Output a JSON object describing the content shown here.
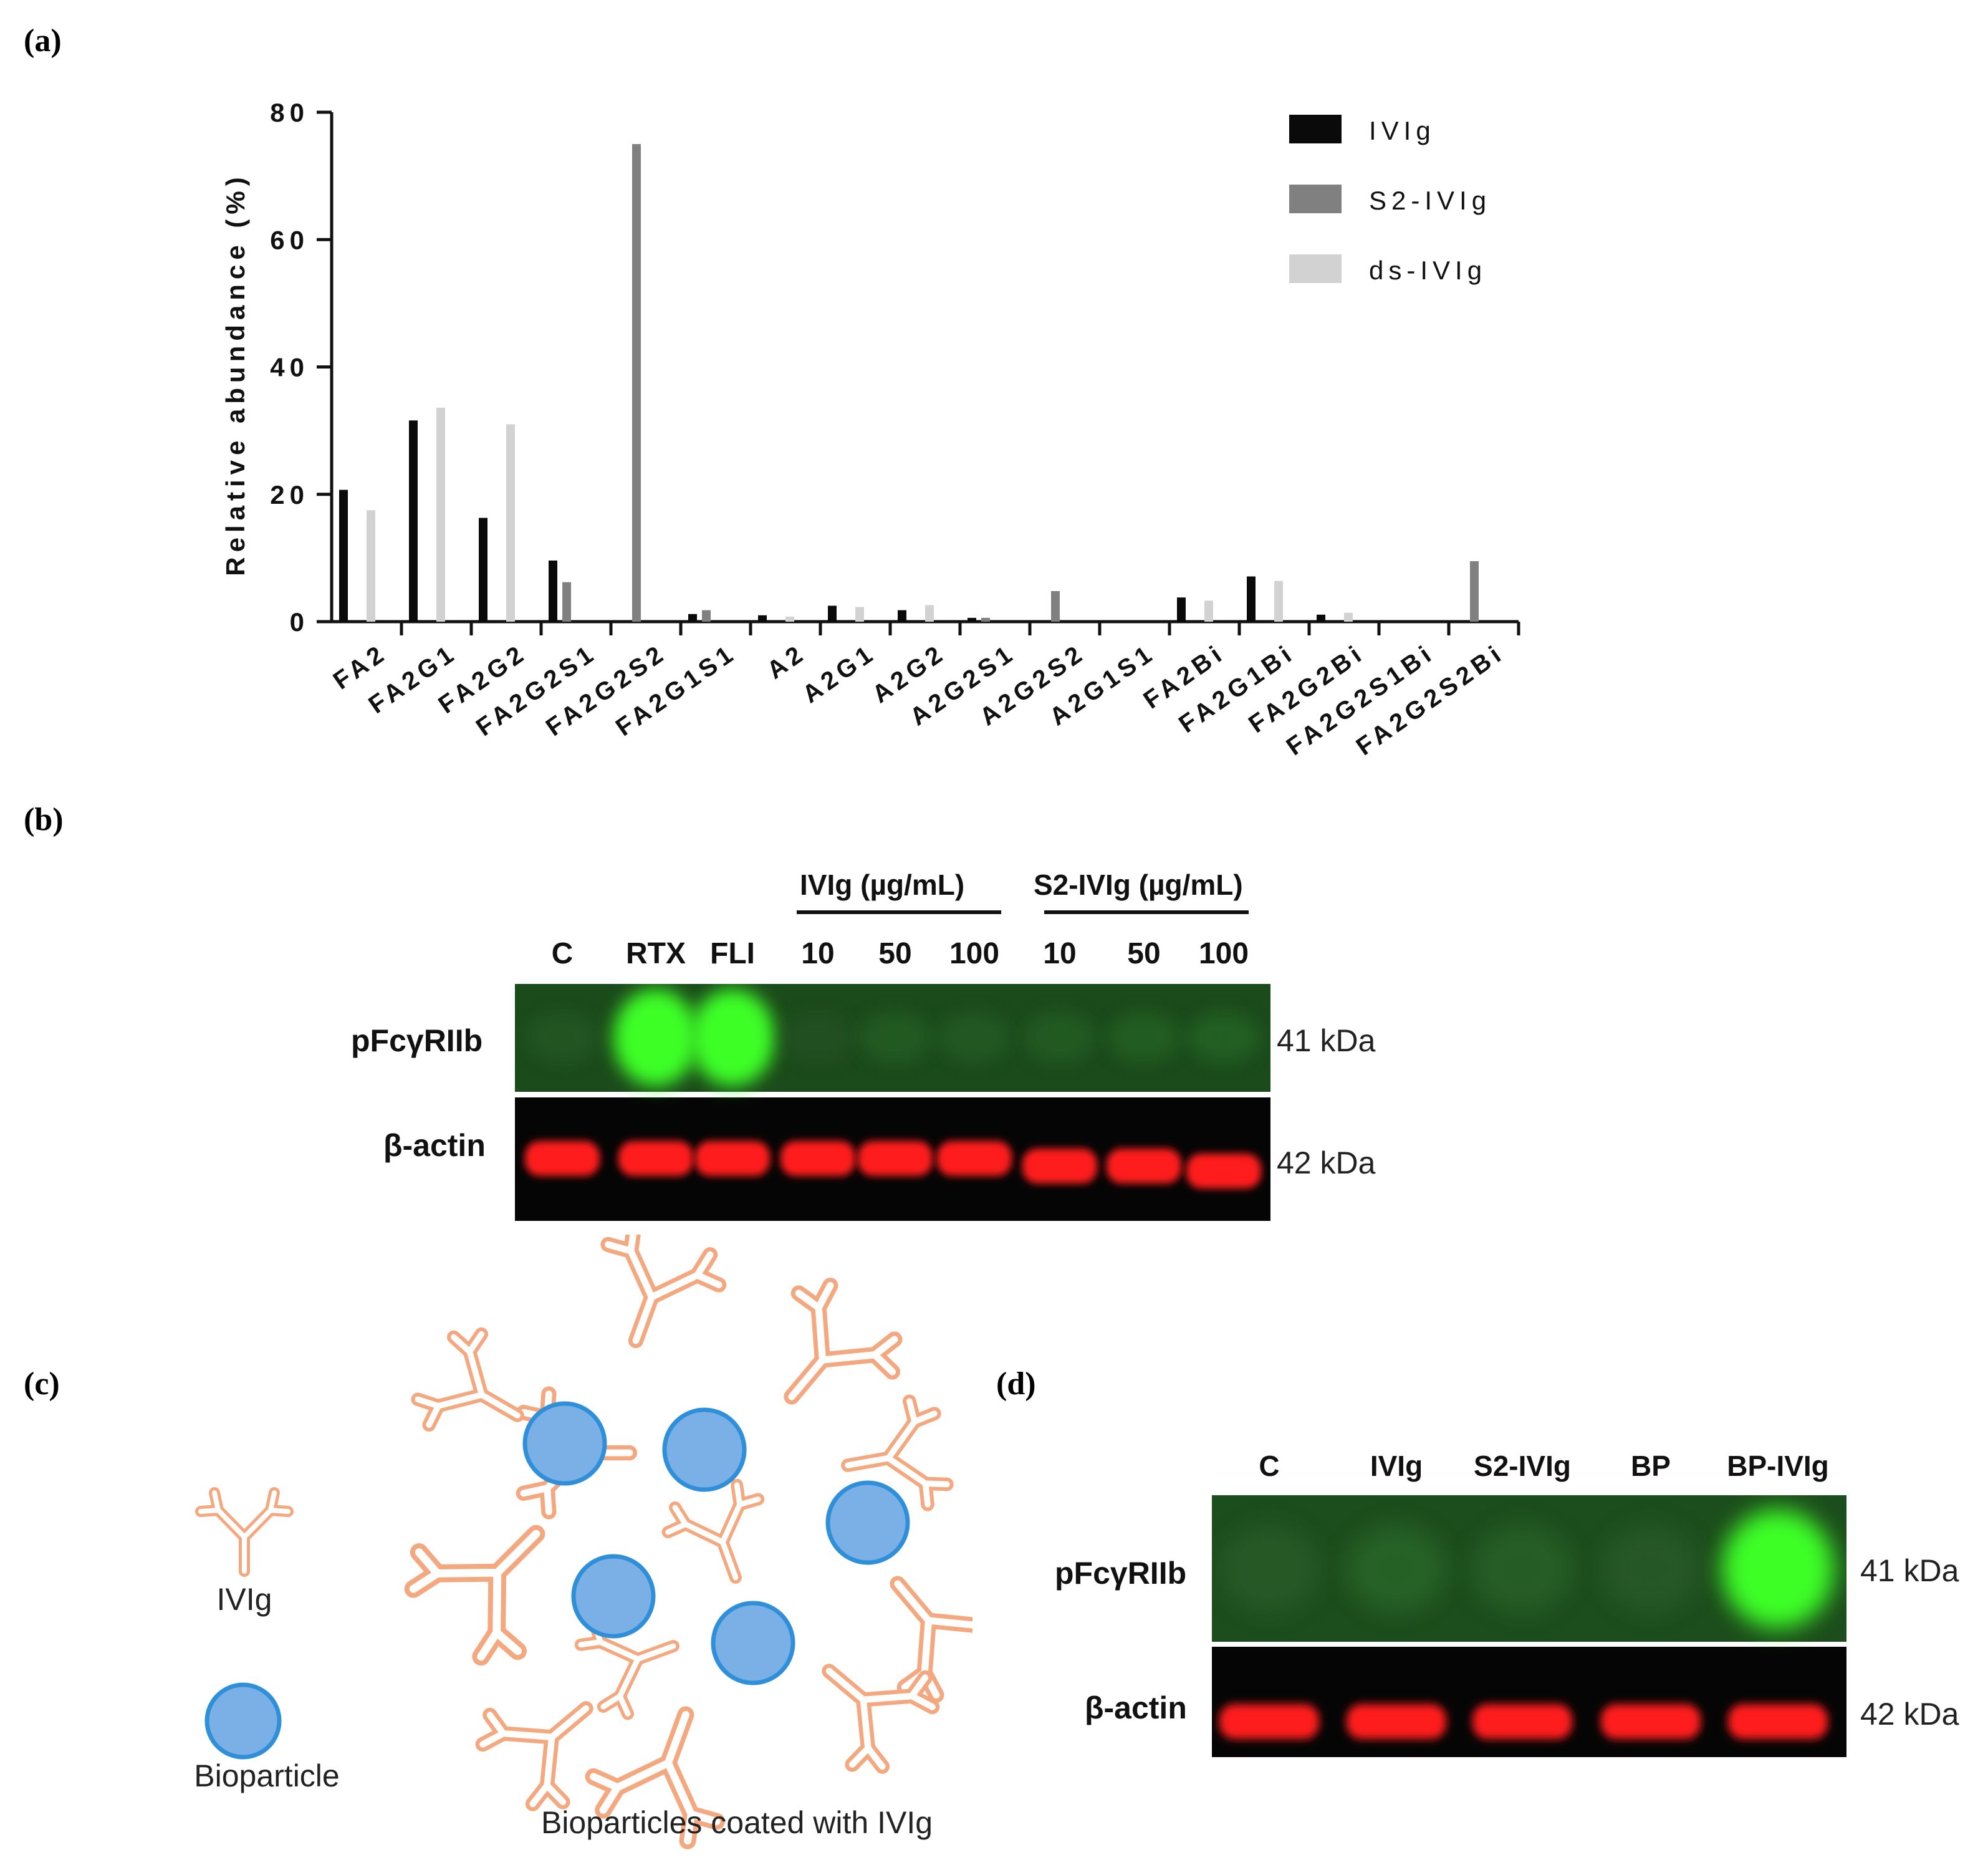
{
  "panels": {
    "a": "(a)",
    "b": "(b)",
    "c": "(c)",
    "d": "(d)"
  },
  "chart_data": {
    "type": "bar",
    "ylabel": "Relative abundance (%)",
    "xlabel": "",
    "ylim": [
      0,
      80
    ],
    "yticks": [
      0,
      20,
      40,
      60,
      80
    ],
    "legend_position": "top-right",
    "categories": [
      "FA2",
      "FA2G1",
      "FA2G2",
      "FA2G2S1",
      "FA2G2S2",
      "FA2G1S1",
      "A2",
      "A2G1",
      "A2G2",
      "A2G2S1",
      "A2G2S2",
      "A2G1S1",
      "FA2Bi",
      "FA2G1Bi",
      "FA2G2Bi",
      "FA2G2S1Bi",
      "FA2G2S2Bi"
    ],
    "series": [
      {
        "name": "IVIg",
        "color": "#0a0a0a",
        "values": [
          20.7,
          31.6,
          16.3,
          9.6,
          0,
          1.2,
          1.0,
          2.5,
          1.8,
          0.6,
          0,
          0,
          3.8,
          7.1,
          1.1,
          0,
          0
        ]
      },
      {
        "name": "S2-IVIg",
        "color": "#808080",
        "values": [
          0,
          0,
          0,
          6.2,
          75.0,
          1.8,
          0,
          0,
          0,
          0.6,
          4.8,
          0,
          0,
          0,
          0,
          0,
          9.5
        ]
      },
      {
        "name": "ds-IVIg",
        "color": "#d2d2d2",
        "values": [
          17.5,
          33.6,
          31.0,
          0,
          0,
          0,
          0.8,
          2.3,
          2.6,
          0,
          0,
          0,
          3.3,
          6.4,
          1.4,
          0,
          0
        ]
      }
    ]
  },
  "blot_b": {
    "groups": [
      "IVIg (µg/mL)",
      "S2-IVIg (µg/mL)"
    ],
    "lanes": [
      "C",
      "RTX",
      "FLI",
      "10",
      "50",
      "100",
      "10",
      "50",
      "100"
    ],
    "rows": [
      "pFcγRIIb",
      "β-actin"
    ],
    "kda": [
      "41 kDa",
      "42 kDa"
    ],
    "green_intensity": [
      0.1,
      1.0,
      1.0,
      0.05,
      0.15,
      0.12,
      0.15,
      0.18,
      0.2
    ],
    "red_intensity": [
      1,
      1,
      1,
      1,
      1,
      1,
      1,
      1,
      1
    ]
  },
  "diagram_c": {
    "ivig_label": "IVIg",
    "bioparticle_label": "Bioparticle",
    "coated_label": "Bioparticles coated with IVIg",
    "antibody_color": "#f4a880",
    "particle_color": "#7bb0e6",
    "particle_border": "#2f8fd8"
  },
  "blot_d": {
    "lanes": [
      "C",
      "IVIg",
      "S2-IVIg",
      "BP",
      "BP-IVIg"
    ],
    "rows": [
      "pFcγRIIb",
      "β-actin"
    ],
    "kda": [
      "41 kDa",
      "42 kDa"
    ],
    "green_intensity": [
      0.1,
      0.2,
      0.15,
      0.08,
      1.0
    ],
    "red_intensity": [
      1,
      1,
      1,
      1,
      1
    ]
  }
}
